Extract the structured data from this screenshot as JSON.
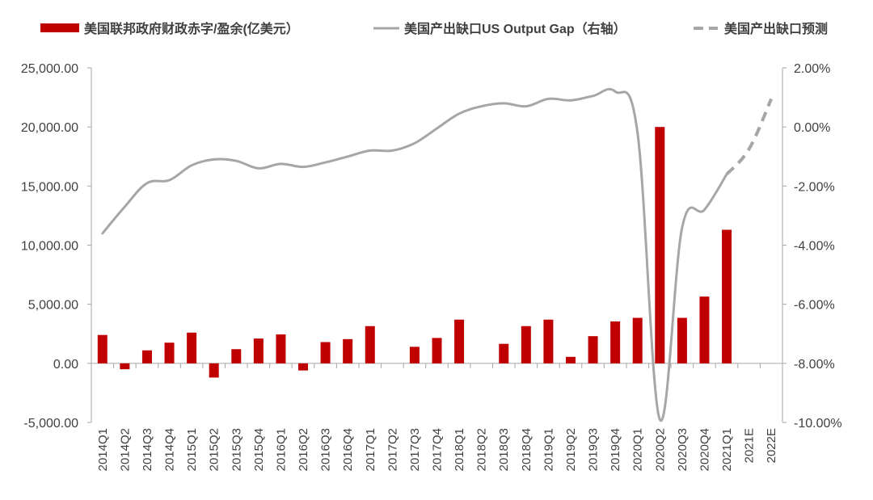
{
  "chart_data": {
    "type": "bar+line",
    "title": "",
    "categories": [
      "2014Q1",
      "2014Q2",
      "2014Q3",
      "2014Q4",
      "2015Q1",
      "2015Q2",
      "2015Q3",
      "2015Q4",
      "2016Q1",
      "2016Q2",
      "2016Q3",
      "2016Q4",
      "2017Q1",
      "2017Q2",
      "2017Q3",
      "2017Q4",
      "2018Q1",
      "2018Q2",
      "2018Q3",
      "2018Q4",
      "2019Q1",
      "2019Q2",
      "2019Q3",
      "2019Q4",
      "2020Q1",
      "2020Q2",
      "2020Q3",
      "2020Q4",
      "2021Q1",
      "2021E",
      "2022E"
    ],
    "legend": {
      "position": "top",
      "items": [
        {
          "label": "美国联邦政府财政赤字/盈余(亿美元）",
          "style": "bar",
          "color": "#C00000"
        },
        {
          "label": "美国产出缺口US Output Gap（右轴）",
          "style": "line",
          "color": "#A6A6A6"
        },
        {
          "label": "美国产出缺口预测",
          "style": "dashed",
          "color": "#A6A6A6"
        }
      ]
    },
    "y_left": {
      "min": -5000,
      "max": 25000,
      "ticks": [
        -5000,
        0,
        5000,
        10000,
        15000,
        20000,
        25000
      ],
      "tick_labels": [
        "-5,000.00",
        "0.00",
        "5,000.00",
        "10,000.00",
        "15,000.00",
        "20,000.00",
        "25,000.00"
      ]
    },
    "y_right": {
      "min": -10,
      "max": 2,
      "ticks": [
        -10,
        -8,
        -6,
        -4,
        -2,
        0,
        2
      ],
      "tick_labels": [
        "-10.00%",
        "-8.00%",
        "-6.00%",
        "-4.00%",
        "-2.00%",
        "0.00%",
        "2.00%"
      ]
    },
    "series": [
      {
        "name": "美国联邦政府财政赤字/盈余(亿美元）",
        "type": "bar",
        "axis": "left",
        "color": "#C00000",
        "values": [
          2400,
          -500,
          1100,
          1750,
          2600,
          -1200,
          1200,
          2100,
          2450,
          -600,
          1800,
          2050,
          3150,
          null,
          1400,
          2150,
          3700,
          null,
          1650,
          3150,
          3700,
          550,
          2300,
          3550,
          3850,
          20000,
          3850,
          5650,
          11300,
          null,
          null
        ]
      },
      {
        "name": "美国产出缺口US Output Gap（右轴）",
        "type": "line",
        "axis": "right",
        "color": "#A6A6A6",
        "values": [
          -3.6,
          -2.7,
          -1.9,
          -1.8,
          -1.3,
          -1.1,
          -1.15,
          -1.4,
          -1.25,
          -1.35,
          -1.2,
          -1.0,
          -0.8,
          -0.8,
          -0.55,
          -0.05,
          0.45,
          0.7,
          0.8,
          0.7,
          0.95,
          0.9,
          1.05,
          1.2,
          -0.2,
          -9.9,
          -3.4,
          -2.8,
          -1.6,
          null,
          null
        ]
      },
      {
        "name": "美国产出缺口预测",
        "type": "line",
        "style": "dashed",
        "axis": "right",
        "color": "#A6A6A6",
        "values": [
          null,
          null,
          null,
          null,
          null,
          null,
          null,
          null,
          null,
          null,
          null,
          null,
          null,
          null,
          null,
          null,
          null,
          null,
          null,
          null,
          null,
          null,
          null,
          null,
          null,
          null,
          null,
          null,
          -1.6,
          -0.75,
          0.95
        ]
      }
    ]
  }
}
